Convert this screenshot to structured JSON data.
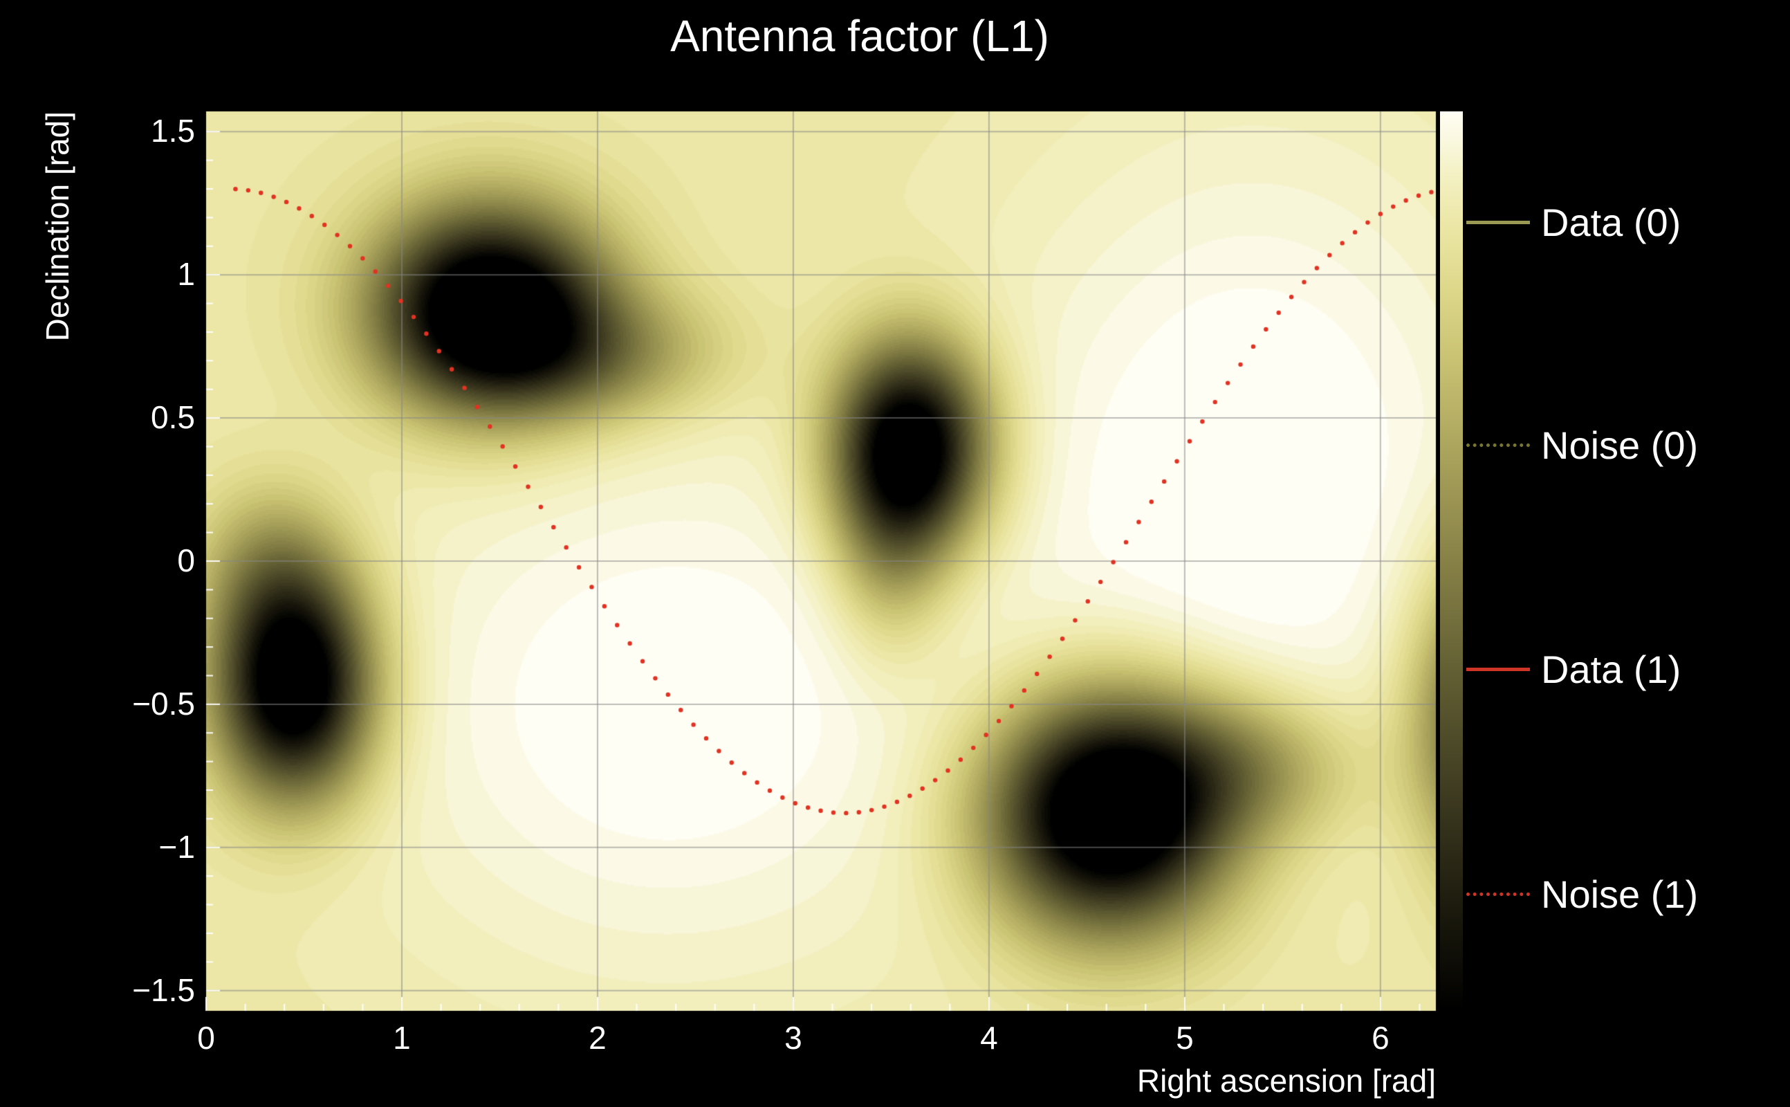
{
  "page": {
    "background": "#000000",
    "text_color": "#ffffff"
  },
  "chart_data": {
    "type": "heatmap",
    "title": "Antenna factor (L1)",
    "xlabel": "Right ascension [rad]",
    "ylabel": "Declination [rad]",
    "xlim": [
      0,
      6.2832
    ],
    "ylim": [
      -1.5708,
      1.5708
    ],
    "x_ticks": [
      0,
      1,
      2,
      3,
      4,
      5,
      6
    ],
    "x_tick_labels": [
      "0",
      "1",
      "2",
      "3",
      "4",
      "5",
      "6"
    ],
    "y_ticks": [
      -1.5,
      -1,
      -0.5,
      0,
      0.5,
      1,
      1.5
    ],
    "y_tick_labels": [
      "−1.5",
      "−1",
      "−0.5",
      "0",
      "0.5",
      "1",
      "1.5"
    ],
    "grid": true,
    "grid_color": "rgba(135,135,135,0.55)",
    "colormap": {
      "name": "pale-yellow-to-black",
      "stops": [
        [
          0.0,
          "#000000"
        ],
        [
          0.12,
          "#1e1c0e"
        ],
        [
          0.25,
          "#403d22"
        ],
        [
          0.38,
          "#636034"
        ],
        [
          0.5,
          "#878147"
        ],
        [
          0.62,
          "#aaa35c"
        ],
        [
          0.72,
          "#c8c172"
        ],
        [
          0.8,
          "#ddd78a"
        ],
        [
          0.87,
          "#ebe6a4"
        ],
        [
          0.93,
          "#f4f1c4"
        ],
        [
          0.97,
          "#faf8e0"
        ],
        [
          1.0,
          "#fffef4"
        ]
      ]
    },
    "field": {
      "base": 0.87,
      "levels": 48,
      "highlights": [
        {
          "x": 2.35,
          "y": -0.5,
          "sx": 1.15,
          "sy": 0.7,
          "amp": 0.15
        },
        {
          "x": 5.35,
          "y": 0.3,
          "sx": 0.95,
          "sy": 0.85,
          "amp": 0.16
        }
      ],
      "dark_blobs": [
        {
          "x": 1.45,
          "y": 0.88,
          "sx": 0.4,
          "sy": 0.24,
          "amp": 1.15
        },
        {
          "x": 2.0,
          "y": 0.72,
          "sx": 0.45,
          "sy": 0.16,
          "amp": 0.3
        },
        {
          "x": 3.6,
          "y": 0.4,
          "sx": 0.27,
          "sy": 0.25,
          "amp": 1.05
        },
        {
          "x": 3.5,
          "y": 0.05,
          "sx": 0.2,
          "sy": 0.26,
          "amp": 0.25
        },
        {
          "x": 0.45,
          "y": -0.43,
          "sx": 0.27,
          "sy": 0.27,
          "amp": 1.1
        },
        {
          "x": 0.33,
          "y": -0.02,
          "sx": 0.26,
          "sy": 0.2,
          "amp": 0.22
        },
        {
          "x": 4.62,
          "y": -0.88,
          "sx": 0.42,
          "sy": 0.28,
          "amp": 1.2
        },
        {
          "x": 5.3,
          "y": -0.72,
          "sx": 0.4,
          "sy": 0.18,
          "amp": 0.3
        },
        {
          "x": 6.5,
          "y": -0.55,
          "sx": 0.24,
          "sy": 0.36,
          "amp": 0.55
        }
      ]
    },
    "noise_tracks": [
      {
        "name": "Noise (1)",
        "color": "#e23222",
        "marker": "dot",
        "model": "dec = offset + amplitude*cos(ra - phase)",
        "amplitude": 1.09,
        "offset": 0.21,
        "phase": 0.12,
        "ra_start": 0.15,
        "ra_end": 6.27,
        "step": 0.065
      }
    ],
    "colorbar": {
      "position": "right",
      "min_color": "#000000",
      "max_color": "#fffef4"
    },
    "legend": {
      "position": "right",
      "entries": [
        {
          "label": "Data (0)",
          "line_style": "solid",
          "color": "#9a9a55"
        },
        {
          "label": "Noise (0)",
          "line_style": "dotted",
          "color": "#77772f"
        },
        {
          "label": "Data (1)",
          "line_style": "solid",
          "color": "#cf3527"
        },
        {
          "label": "Noise (1)",
          "line_style": "dotted",
          "color": "#cf3527"
        }
      ]
    }
  }
}
